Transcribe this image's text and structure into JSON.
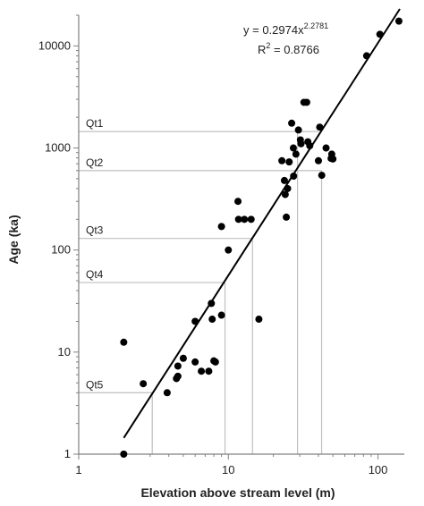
{
  "chart_data": {
    "type": "scatter",
    "title": "",
    "xlabel": "Elevation above stream level (m)",
    "ylabel": "Age (ka)",
    "x_scale": "log",
    "y_scale": "log",
    "xlim": [
      1,
      150
    ],
    "ylim": [
      1,
      20000
    ],
    "x_ticks": [
      1,
      10,
      100
    ],
    "x_tick_labels": [
      "1",
      "10",
      "100"
    ],
    "y_ticks": [
      1,
      10,
      100,
      1000,
      10000
    ],
    "y_tick_labels": [
      "1",
      "10",
      "100",
      "1000",
      "10000"
    ],
    "grid": false,
    "legend": "none",
    "points_x": [
      2.0,
      2.0,
      2.7,
      3.9,
      4.5,
      4.6,
      4.6,
      5.0,
      6.0,
      6.0,
      6.6,
      7.4,
      7.7,
      7.8,
      8.0,
      8.2,
      9.0,
      9.0,
      10.0,
      11.6,
      11.7,
      12.8,
      14.2,
      16.0,
      22.8,
      23.7,
      24.0,
      24.4,
      24.9,
      25.5,
      26.5,
      27.2,
      27.3,
      28.3,
      29.4,
      30.3,
      30.6,
      32.0,
      33.4,
      34.0,
      35.0,
      40.0,
      40.8,
      42.1,
      45.0,
      48.6,
      49.1,
      50.0,
      84.0,
      103.0,
      138.0
    ],
    "points_y": [
      12.5,
      1.0,
      4.9,
      4.0,
      5.5,
      5.8,
      7.3,
      8.7,
      20.0,
      8.0,
      6.5,
      6.5,
      30.0,
      21.0,
      8.2,
      8.0,
      23.0,
      170.0,
      100.0,
      300.0,
      200.0,
      200.0,
      200.0,
      21.0,
      750.0,
      480.0,
      350.0,
      210.0,
      400.0,
      730.0,
      1750.0,
      1000.0,
      530.0,
      870.0,
      1500.0,
      1200.0,
      1100.0,
      2800.0,
      2800.0,
      1150.0,
      1050.0,
      750.0,
      1600.0,
      540.0,
      1000.0,
      790.0,
      870.0,
      780.0,
      8000.0,
      13000.0,
      17500.0
    ],
    "trendline": {
      "a": 0.2974,
      "b": 2.2781,
      "x_range": [
        2.0,
        140.0
      ]
    },
    "equation_text": "y = 0.2974x",
    "equation_exponent": "2.2781",
    "r2_text": "R",
    "r2_superscript": "2",
    "r2_value_text": " = 0.8766",
    "terrace_levels": [
      {
        "name": "Qt1",
        "age": 1450,
        "elevation": null
      },
      {
        "name": "Qt2",
        "age": 600,
        "elevation": 42
      },
      {
        "name": "Qt3",
        "age": 130,
        "elevation": 14.5
      },
      {
        "name": "Qt4",
        "age": 48,
        "elevation": 9.5
      },
      {
        "name": "Qt5",
        "age": 4,
        "elevation": 3.1
      }
    ],
    "terrace_extra_vertical": [
      {
        "elevation": 29,
        "age": 1450
      }
    ],
    "colors": {
      "points": "#000000",
      "trendline": "#000000",
      "reference_lines": "#bfbfbf",
      "axes": "#808080"
    }
  }
}
